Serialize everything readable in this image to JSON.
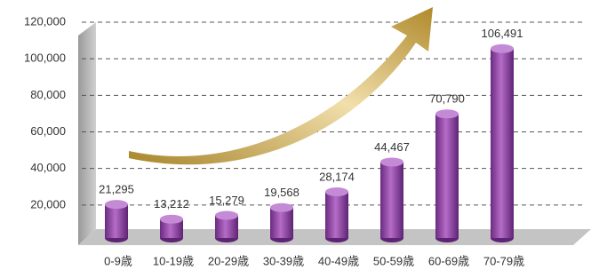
{
  "chart_data": {
    "type": "bar",
    "categories": [
      "0-9歳",
      "10-19歳",
      "20-29歳",
      "30-39歳",
      "40-49歳",
      "50-59歳",
      "60-69歳",
      "70-79歳"
    ],
    "values": [
      21295,
      13212,
      15279,
      19568,
      28174,
      44467,
      70790,
      106491
    ],
    "value_labels": [
      "21,295",
      "13,212",
      "15,279",
      "19,568",
      "28,174",
      "44,467",
      "70,790",
      "106,491"
    ],
    "color": "#8e44a8",
    "ylim": [
      0,
      120000
    ],
    "yticks": [
      {
        "value": 20000,
        "label": "20,000"
      },
      {
        "value": 40000,
        "label": "40,000"
      },
      {
        "value": 60000,
        "label": "60,000"
      },
      {
        "value": 80000,
        "label": "80,000"
      },
      {
        "value": 100000,
        "label": "100,000"
      },
      {
        "value": 120000,
        "label": "120,000"
      }
    ],
    "grid": true
  }
}
